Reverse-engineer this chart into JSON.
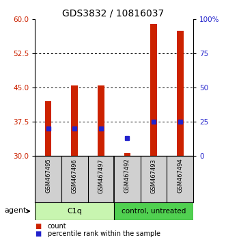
{
  "title": "GDS3832 / 10816037",
  "samples": [
    "GSM467495",
    "GSM467496",
    "GSM467497",
    "GSM467492",
    "GSM467493",
    "GSM467494"
  ],
  "bar_bottom": 30,
  "count_values": [
    42.0,
    45.5,
    45.5,
    30.7,
    59.0,
    57.5
  ],
  "percentile_values": [
    20,
    20,
    20,
    13,
    25,
    25
  ],
  "ylim_left": [
    30,
    60
  ],
  "ylim_right": [
    0,
    100
  ],
  "yticks_left": [
    30,
    37.5,
    45,
    52.5,
    60
  ],
  "yticks_right": [
    0,
    25,
    50,
    75,
    100
  ],
  "ytick_labels_right": [
    "0",
    "25",
    "50",
    "75",
    "100%"
  ],
  "hlines": [
    37.5,
    45,
    52.5
  ],
  "bar_color": "#cc2200",
  "percentile_color": "#2222cc",
  "bar_width": 0.25,
  "left_axis_color": "#cc2200",
  "right_axis_color": "#2222cc",
  "bg_color": "#ffffff",
  "sample_area_bg": "#d0d0d0",
  "c1q_color": "#c8f5b0",
  "control_color": "#50d050",
  "legend_count_label": "count",
  "legend_percentile_label": "percentile rank within the sample"
}
